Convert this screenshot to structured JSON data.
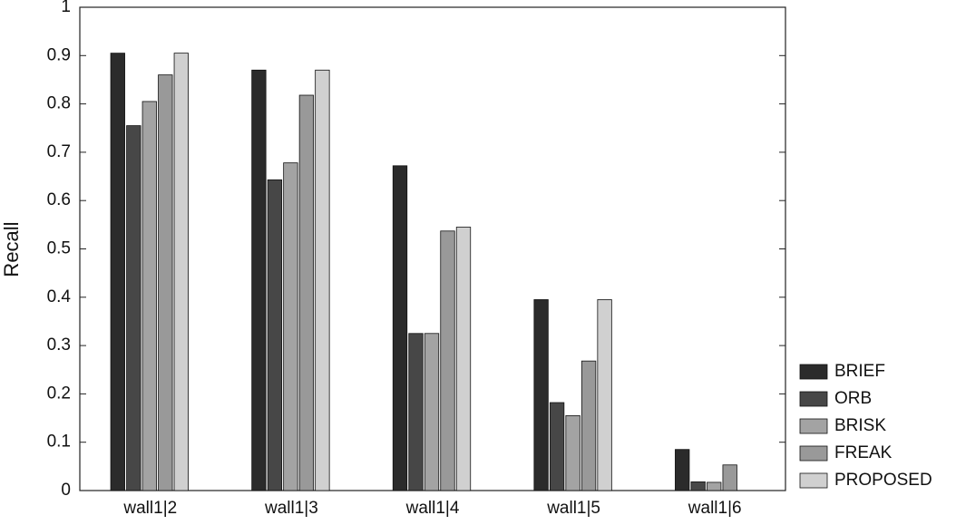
{
  "chart_data": {
    "type": "bar",
    "y_label": "Recall",
    "categories": [
      "wall1|2",
      "wall1|3",
      "wall1|4",
      "wall1|5",
      "wall1|6"
    ],
    "series": [
      {
        "name": "BRIEF",
        "color": "#2b2b2b",
        "values": [
          0.905,
          0.87,
          0.672,
          0.395,
          0.085
        ]
      },
      {
        "name": "ORB",
        "color": "#474747",
        "values": [
          0.755,
          0.643,
          0.325,
          0.182,
          0.018
        ]
      },
      {
        "name": "BRISK",
        "color": "#a3a3a3",
        "values": [
          0.805,
          0.678,
          0.325,
          0.155,
          0.017
        ]
      },
      {
        "name": "FREAK",
        "color": "#999999",
        "values": [
          0.86,
          0.818,
          0.537,
          0.268,
          0.053
        ]
      },
      {
        "name": "PROPOSED",
        "color": "#d0d0d0",
        "values": [
          0.905,
          0.87,
          0.545,
          0.395,
          0
        ]
      }
    ],
    "ylim": [
      0,
      1
    ],
    "yticks": [
      0,
      0.1,
      0.2,
      0.3,
      0.4,
      0.5,
      0.6,
      0.7,
      0.8,
      0.9,
      1
    ],
    "legend": "right-bottom"
  }
}
